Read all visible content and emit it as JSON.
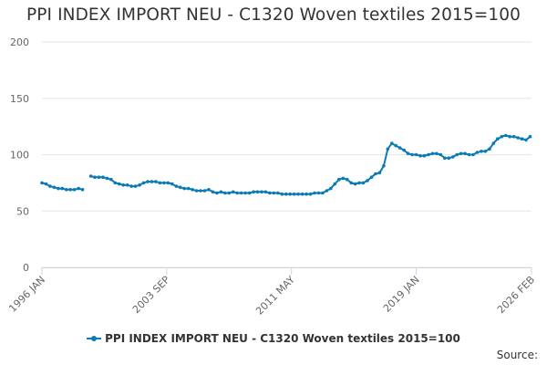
{
  "chart_data": {
    "type": "line",
    "title": "PPI INDEX IMPORT NEU - C1320 Woven textiles 2015=100",
    "xlabel": "",
    "ylabel": "",
    "ylim": [
      0,
      200
    ],
    "yticks": [
      0,
      50,
      100,
      150,
      200
    ],
    "xticks": [
      "1996 JAN",
      "2003 SEP",
      "2011 MAY",
      "2019 JAN",
      "2026 FEB"
    ],
    "xlim": [
      "1996-01",
      "2026-02"
    ],
    "grid": true,
    "legend_position": "bottom",
    "series_color": "#0b7bb5",
    "credits": "Source:",
    "series": [
      {
        "name": "PPI INDEX IMPORT NEU - C1320 Woven textiles 2015=100",
        "points": [
          [
            "1996-01",
            75
          ],
          [
            "1996-04",
            74
          ],
          [
            "1996-07",
            72
          ],
          [
            "1996-10",
            71
          ],
          [
            "1997-01",
            70
          ],
          [
            "1997-04",
            70
          ],
          [
            "1997-07",
            69
          ],
          [
            "1997-10",
            69
          ],
          [
            "1998-01",
            69
          ],
          [
            "1998-04",
            70
          ],
          [
            "1998-07",
            69
          ],
          [
            "1999-01",
            81
          ],
          [
            "1999-04",
            80
          ],
          [
            "1999-07",
            80
          ],
          [
            "1999-10",
            80
          ],
          [
            "2000-01",
            79
          ],
          [
            "2000-04",
            78
          ],
          [
            "2000-07",
            75
          ],
          [
            "2000-10",
            74
          ],
          [
            "2001-01",
            73
          ],
          [
            "2001-04",
            73
          ],
          [
            "2001-07",
            72
          ],
          [
            "2001-10",
            72
          ],
          [
            "2002-01",
            73
          ],
          [
            "2002-04",
            75
          ],
          [
            "2002-07",
            76
          ],
          [
            "2002-10",
            76
          ],
          [
            "2003-01",
            76
          ],
          [
            "2003-04",
            75
          ],
          [
            "2003-07",
            75
          ],
          [
            "2003-10",
            75
          ],
          [
            "2004-01",
            74
          ],
          [
            "2004-04",
            72
          ],
          [
            "2004-07",
            71
          ],
          [
            "2004-10",
            70
          ],
          [
            "2005-01",
            70
          ],
          [
            "2005-04",
            69
          ],
          [
            "2005-07",
            68
          ],
          [
            "2005-10",
            68
          ],
          [
            "2006-01",
            68
          ],
          [
            "2006-04",
            69
          ],
          [
            "2006-07",
            67
          ],
          [
            "2006-10",
            66
          ],
          [
            "2007-01",
            67
          ],
          [
            "2007-04",
            66
          ],
          [
            "2007-07",
            66
          ],
          [
            "2007-10",
            67
          ],
          [
            "2008-01",
            66
          ],
          [
            "2008-04",
            66
          ],
          [
            "2008-07",
            66
          ],
          [
            "2008-10",
            66
          ],
          [
            "2009-01",
            67
          ],
          [
            "2009-04",
            67
          ],
          [
            "2009-07",
            67
          ],
          [
            "2009-10",
            67
          ],
          [
            "2010-01",
            66
          ],
          [
            "2010-04",
            66
          ],
          [
            "2010-07",
            66
          ],
          [
            "2010-10",
            65
          ],
          [
            "2011-01",
            65
          ],
          [
            "2011-04",
            65
          ],
          [
            "2011-07",
            65
          ],
          [
            "2011-10",
            65
          ],
          [
            "2012-01",
            65
          ],
          [
            "2012-04",
            65
          ],
          [
            "2012-07",
            65
          ],
          [
            "2012-10",
            66
          ],
          [
            "2013-01",
            66
          ],
          [
            "2013-04",
            66
          ],
          [
            "2013-07",
            68
          ],
          [
            "2013-10",
            70
          ],
          [
            "2014-01",
            74
          ],
          [
            "2014-04",
            78
          ],
          [
            "2014-07",
            79
          ],
          [
            "2014-10",
            78
          ],
          [
            "2015-01",
            75
          ],
          [
            "2015-04",
            74
          ],
          [
            "2015-07",
            75
          ],
          [
            "2015-10",
            75
          ],
          [
            "2016-01",
            77
          ],
          [
            "2016-04",
            80
          ],
          [
            "2016-07",
            83
          ],
          [
            "2016-10",
            84
          ],
          [
            "2017-01",
            90
          ],
          [
            "2017-04",
            105
          ],
          [
            "2017-07",
            110
          ],
          [
            "2017-10",
            108
          ],
          [
            "2018-01",
            106
          ],
          [
            "2018-04",
            104
          ],
          [
            "2018-07",
            101
          ],
          [
            "2018-10",
            100
          ],
          [
            "2019-01",
            100
          ],
          [
            "2019-04",
            99
          ],
          [
            "2019-07",
            99
          ],
          [
            "2019-10",
            100
          ],
          [
            "2020-01",
            101
          ],
          [
            "2020-04",
            101
          ],
          [
            "2020-07",
            100
          ],
          [
            "2020-10",
            97
          ],
          [
            "2021-01",
            97
          ],
          [
            "2021-04",
            98
          ],
          [
            "2021-07",
            100
          ],
          [
            "2021-10",
            101
          ],
          [
            "2022-01",
            101
          ],
          [
            "2022-04",
            100
          ],
          [
            "2022-07",
            100
          ],
          [
            "2022-10",
            102
          ],
          [
            "2023-01",
            103
          ],
          [
            "2023-04",
            103
          ],
          [
            "2023-07",
            105
          ],
          [
            "2023-10",
            110
          ],
          [
            "2024-01",
            114
          ],
          [
            "2024-04",
            116
          ],
          [
            "2024-07",
            117
          ],
          [
            "2024-10",
            116
          ],
          [
            "2025-01",
            116
          ],
          [
            "2025-04",
            115
          ],
          [
            "2025-07",
            114
          ],
          [
            "2025-10",
            113
          ],
          [
            "2026-01",
            116
          ]
        ]
      }
    ]
  }
}
